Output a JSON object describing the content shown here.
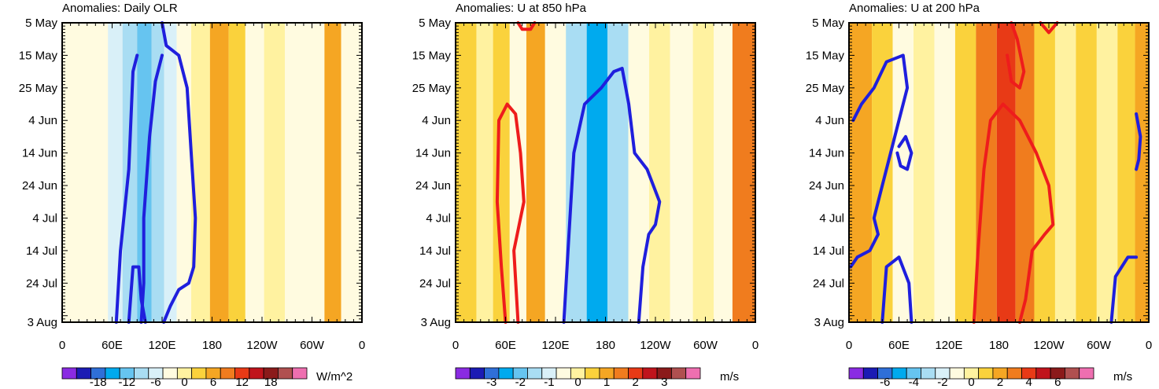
{
  "chart_data": [
    {
      "type": "heatmap",
      "title": "Anomalies: Daily OLR",
      "units": "W/m^2",
      "xticks": [
        "0",
        "60E",
        "120E",
        "180",
        "120W",
        "60W",
        "0"
      ],
      "yticks": [
        "5 May",
        "15 May",
        "25 May",
        "4 Jun",
        "14 Jun",
        "24 Jun",
        "4 Jul",
        "14 Jul",
        "24 Jul",
        "3 Aug"
      ],
      "colorbar_labels": [
        "-18",
        "-12",
        "-6",
        "0",
        "6",
        "12",
        "18"
      ],
      "colorbar_colors": [
        "#8a2be2",
        "#1b1bb4",
        "#2f6fd8",
        "#00aaee",
        "#66c4f0",
        "#a9ddf3",
        "#d9f0f8",
        "#fffbe0",
        "#fff2a0",
        "#fad23c",
        "#f5a623",
        "#f07c1e",
        "#e83a16",
        "#c0141c",
        "#8b1a1a",
        "#b05050",
        "#ee6fb0"
      ],
      "bands": [
        {
          "lon": 20,
          "value": -2
        },
        {
          "lon": 45,
          "value": -3
        },
        {
          "lon": 65,
          "value": -6
        },
        {
          "lon": 80,
          "value": -8
        },
        {
          "lon": 100,
          "value": -12
        },
        {
          "lon": 115,
          "value": -9
        },
        {
          "lon": 130,
          "value": -5
        },
        {
          "lon": 145,
          "value": -2
        },
        {
          "lon": 165,
          "value": 1
        },
        {
          "lon": 190,
          "value": 8
        },
        {
          "lon": 210,
          "value": 4
        },
        {
          "lon": 230,
          "value": -3
        },
        {
          "lon": 255,
          "value": 2
        },
        {
          "lon": 280,
          "value": -2
        },
        {
          "lon": 305,
          "value": -1
        },
        {
          "lon": 325,
          "value": 6
        },
        {
          "lon": 345,
          "value": -1
        }
      ],
      "contours": [
        {
          "color": "blue",
          "points": [
            [
              120,
              0
            ],
            [
              125,
              7
            ],
            [
              140,
              10
            ],
            [
              150,
              20
            ],
            [
              155,
              40
            ],
            [
              160,
              60
            ],
            [
              158,
              75
            ],
            [
              152,
              80
            ],
            [
              140,
              82
            ],
            [
              130,
              87
            ],
            [
              122,
              92
            ]
          ]
        },
        {
          "color": "blue",
          "points": [
            [
              120,
              10
            ],
            [
              112,
              18
            ],
            [
              105,
              35
            ],
            [
              98,
              60
            ],
            [
              98,
              80
            ],
            [
              95,
              92
            ]
          ]
        },
        {
          "color": "blue",
          "points": [
            [
              65,
              92
            ],
            [
              70,
              70
            ],
            [
              80,
              45
            ],
            [
              85,
              15
            ],
            [
              90,
              10
            ]
          ]
        },
        {
          "color": "blue",
          "points": [
            [
              80,
              92
            ],
            [
              85,
              75
            ],
            [
              92,
              75
            ],
            [
              95,
              85
            ],
            [
              100,
              92
            ]
          ]
        }
      ]
    },
    {
      "type": "heatmap",
      "title": "Anomalies: U at 850 hPa",
      "units": "m/s",
      "xticks": [
        "0",
        "60E",
        "120E",
        "180",
        "120W",
        "60W",
        "0"
      ],
      "yticks": [
        "5 May",
        "15 May",
        "25 May",
        "4 Jun",
        "14 Jun",
        "24 Jun",
        "4 Jul",
        "14 Jul",
        "24 Jul",
        "3 Aug"
      ],
      "colorbar_labels": [
        "-3",
        "-2",
        "-1",
        "0",
        "1",
        "2",
        "3"
      ],
      "colorbar_colors": [
        "#8a2be2",
        "#1b1bb4",
        "#2f6fd8",
        "#00aaee",
        "#66c4f0",
        "#a9ddf3",
        "#d9f0f8",
        "#fffbe0",
        "#fff2a0",
        "#fad23c",
        "#f5a623",
        "#f07c1e",
        "#e83a16",
        "#c0141c",
        "#8b1a1a",
        "#b05050",
        "#ee6fb0"
      ],
      "bands": [
        {
          "lon": 15,
          "value": 0.5
        },
        {
          "lon": 35,
          "value": 0
        },
        {
          "lon": 55,
          "value": 0.8
        },
        {
          "lon": 75,
          "value": -0.2
        },
        {
          "lon": 95,
          "value": 1.0
        },
        {
          "lon": 120,
          "value": -0.5
        },
        {
          "lon": 145,
          "value": -1.5
        },
        {
          "lon": 170,
          "value": -2.2
        },
        {
          "lon": 195,
          "value": -1.2
        },
        {
          "lon": 220,
          "value": -0.3
        },
        {
          "lon": 245,
          "value": 0.3
        },
        {
          "lon": 270,
          "value": -0.3
        },
        {
          "lon": 300,
          "value": 0.2
        },
        {
          "lon": 320,
          "value": -0.4
        },
        {
          "lon": 345,
          "value": 1.5
        }
      ],
      "contours": [
        {
          "color": "red",
          "points": [
            [
              60,
              92
            ],
            [
              55,
              75
            ],
            [
              50,
              55
            ],
            [
              52,
              30
            ],
            [
              62,
              25
            ],
            [
              72,
              28
            ],
            [
              78,
              40
            ],
            [
              82,
              55
            ],
            [
              70,
              70
            ],
            [
              75,
              92
            ]
          ]
        },
        {
          "color": "blue",
          "points": [
            [
              130,
              92
            ],
            [
              135,
              70
            ],
            [
              142,
              40
            ],
            [
              155,
              25
            ],
            [
              175,
              20
            ],
            [
              190,
              15
            ],
            [
              200,
              14
            ],
            [
              208,
              25
            ],
            [
              215,
              40
            ],
            [
              230,
              45
            ],
            [
              245,
              55
            ],
            [
              240,
              62
            ],
            [
              232,
              65
            ],
            [
              225,
              75
            ],
            [
              220,
              92
            ]
          ]
        },
        {
          "color": "red",
          "points": [
            [
              75,
              0
            ],
            [
              80,
              2
            ],
            [
              90,
              2
            ],
            [
              95,
              0
            ]
          ]
        }
      ]
    },
    {
      "type": "heatmap",
      "title": "Anomalies: U at 200 hPa",
      "units": "m/s",
      "xticks": [
        "0",
        "60E",
        "120E",
        "180",
        "120W",
        "60W",
        "0"
      ],
      "yticks": [
        "5 May",
        "15 May",
        "25 May",
        "4 Jun",
        "14 Jun",
        "24 Jun",
        "4 Jul",
        "14 Jul",
        "24 Jul",
        "3 Aug"
      ],
      "colorbar_labels": [
        "-6",
        "-4",
        "-2",
        "0",
        "2",
        "4",
        "6"
      ],
      "colorbar_colors": [
        "#8a2be2",
        "#1b1bb4",
        "#2f6fd8",
        "#00aaee",
        "#66c4f0",
        "#a9ddf3",
        "#d9f0f8",
        "#fffbe0",
        "#fff2a0",
        "#fad23c",
        "#f5a623",
        "#f07c1e",
        "#e83a16",
        "#c0141c",
        "#8b1a1a",
        "#b05050",
        "#ee6fb0"
      ],
      "bands": [
        {
          "lon": 15,
          "value": 2.5
        },
        {
          "lon": 40,
          "value": 1.5
        },
        {
          "lon": 65,
          "value": -0.5
        },
        {
          "lon": 90,
          "value": 0.5
        },
        {
          "lon": 115,
          "value": -0.5
        },
        {
          "lon": 140,
          "value": 1.5
        },
        {
          "lon": 165,
          "value": 3
        },
        {
          "lon": 190,
          "value": 4.5
        },
        {
          "lon": 210,
          "value": 3.5
        },
        {
          "lon": 235,
          "value": 1.5
        },
        {
          "lon": 260,
          "value": 0.5
        },
        {
          "lon": 285,
          "value": 1.0
        },
        {
          "lon": 310,
          "value": 0.0
        },
        {
          "lon": 335,
          "value": 1.5
        },
        {
          "lon": 352,
          "value": 2.5
        }
      ],
      "contours": [
        {
          "color": "blue",
          "points": [
            [
              5,
              30
            ],
            [
              15,
              25
            ],
            [
              30,
              20
            ],
            [
              45,
              12
            ],
            [
              65,
              10
            ],
            [
              70,
              20
            ],
            [
              55,
              35
            ],
            [
              40,
              50
            ],
            [
              30,
              60
            ],
            [
              35,
              65
            ],
            [
              25,
              70
            ],
            [
              10,
              72
            ],
            [
              2,
              75
            ]
          ]
        },
        {
          "color": "blue",
          "points": [
            [
              60,
              38
            ],
            [
              68,
              35
            ],
            [
              75,
              40
            ],
            [
              70,
              45
            ],
            [
              62,
              44
            ],
            [
              58,
              40
            ]
          ]
        },
        {
          "color": "blue",
          "points": [
            [
              40,
              92
            ],
            [
              45,
              75
            ],
            [
              60,
              72
            ],
            [
              72,
              80
            ],
            [
              75,
              92
            ]
          ]
        },
        {
          "color": "red",
          "points": [
            [
              150,
              92
            ],
            [
              155,
              70
            ],
            [
              162,
              45
            ],
            [
              170,
              30
            ],
            [
              185,
              25
            ],
            [
              205,
              30
            ],
            [
              225,
              40
            ],
            [
              240,
              50
            ],
            [
              245,
              62
            ],
            [
              235,
              65
            ],
            [
              220,
              70
            ],
            [
              212,
              85
            ],
            [
              205,
              92
            ]
          ]
        },
        {
          "color": "red",
          "points": [
            [
              195,
              0
            ],
            [
              202,
              5
            ],
            [
              210,
              15
            ],
            [
              205,
              20
            ],
            [
              195,
              18
            ],
            [
              190,
              10
            ]
          ]
        },
        {
          "color": "red",
          "points": [
            [
              230,
              0
            ],
            [
              240,
              3
            ],
            [
              250,
              0
            ]
          ]
        },
        {
          "color": "blue",
          "points": [
            [
              315,
              92
            ],
            [
              320,
              78
            ],
            [
              335,
              72
            ],
            [
              345,
              72
            ]
          ]
        },
        {
          "color": "blue",
          "points": [
            [
              345,
              28
            ],
            [
              350,
              35
            ],
            [
              348,
              42
            ],
            [
              345,
              45
            ]
          ]
        }
      ]
    }
  ]
}
